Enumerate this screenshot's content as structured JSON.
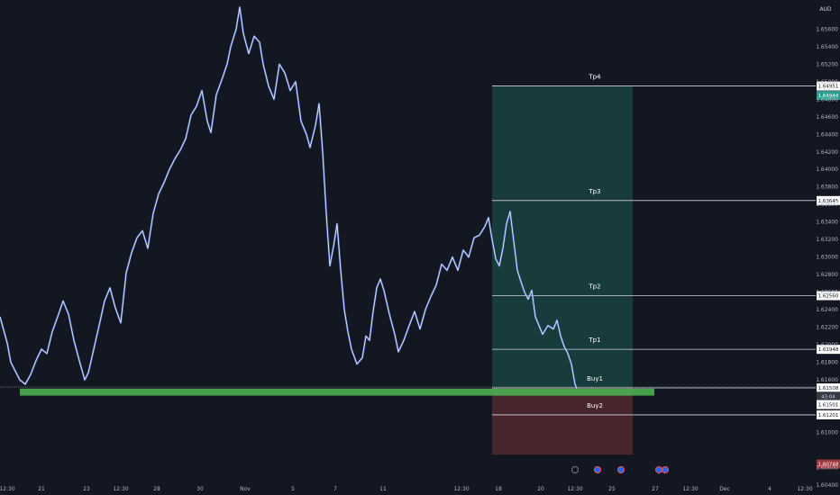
{
  "chart_data": {
    "type": "line",
    "currency": "AUD",
    "y_min": 1.6041,
    "y_max": 1.6585,
    "y_ticks": [
      1.656,
      1.654,
      1.652,
      1.65,
      1.648,
      1.646,
      1.644,
      1.642,
      1.64,
      1.638,
      1.636,
      1.634,
      1.632,
      1.63,
      1.628,
      1.626,
      1.624,
      1.622,
      1.62,
      1.618,
      1.616,
      1.61,
      1.606,
      1.604
    ],
    "y_tick_labels": [
      "1.65600",
      "1.65400",
      "1.65200",
      "1.65000",
      "1.64800",
      "1.64600",
      "1.64400",
      "1.64200",
      "1.64000",
      "1.63800",
      "1.63600",
      "1.63400",
      "1.63200",
      "1.63000",
      "1.62800",
      "1.62600",
      "1.62400",
      "1.62200",
      "1.62000",
      "1.61800",
      "1.61600",
      "1.61000",
      "1.60600",
      "1.60400"
    ],
    "x_labels": [
      "12:30",
      "21",
      "23",
      "12:30",
      "28",
      "30",
      "Nov",
      "5",
      "7",
      "11",
      "12:30",
      "18",
      "20",
      "12:30",
      "25",
      "27",
      "12:30",
      "Dec",
      "4",
      "12:30"
    ],
    "price_series": [
      [
        0,
        1.6232
      ],
      [
        8,
        1.6202
      ],
      [
        12,
        1.618
      ],
      [
        16,
        1.6172
      ],
      [
        22,
        1.616
      ],
      [
        28,
        1.6155
      ],
      [
        34,
        1.6166
      ],
      [
        40,
        1.6182
      ],
      [
        46,
        1.6195
      ],
      [
        52,
        1.619
      ],
      [
        58,
        1.6215
      ],
      [
        64,
        1.6232
      ],
      [
        70,
        1.625
      ],
      [
        76,
        1.6235
      ],
      [
        82,
        1.6205
      ],
      [
        88,
        1.6182
      ],
      [
        94,
        1.616
      ],
      [
        98,
        1.6168
      ],
      [
        104,
        1.6195
      ],
      [
        110,
        1.6222
      ],
      [
        116,
        1.625
      ],
      [
        122,
        1.6265
      ],
      [
        128,
        1.6242
      ],
      [
        134,
        1.6225
      ],
      [
        140,
        1.6282
      ],
      [
        146,
        1.6305
      ],
      [
        152,
        1.6322
      ],
      [
        158,
        1.633
      ],
      [
        164,
        1.631
      ],
      [
        170,
        1.635
      ],
      [
        176,
        1.6372
      ],
      [
        182,
        1.6385
      ],
      [
        188,
        1.64
      ],
      [
        194,
        1.6412
      ],
      [
        200,
        1.6422
      ],
      [
        206,
        1.6435
      ],
      [
        212,
        1.6462
      ],
      [
        218,
        1.6472
      ],
      [
        224,
        1.649
      ],
      [
        230,
        1.6455
      ],
      [
        234,
        1.6442
      ],
      [
        240,
        1.6485
      ],
      [
        246,
        1.6502
      ],
      [
        252,
        1.652
      ],
      [
        256,
        1.654
      ],
      [
        262,
        1.656
      ],
      [
        266,
        1.6585
      ],
      [
        270,
        1.6555
      ],
      [
        276,
        1.6532
      ],
      [
        282,
        1.6552
      ],
      [
        288,
        1.6545
      ],
      [
        292,
        1.652
      ],
      [
        298,
        1.6495
      ],
      [
        304,
        1.648
      ],
      [
        310,
        1.652
      ],
      [
        316,
        1.651
      ],
      [
        322,
        1.649
      ],
      [
        328,
        1.65
      ],
      [
        334,
        1.6455
      ],
      [
        340,
        1.644
      ],
      [
        344,
        1.6425
      ],
      [
        350,
        1.645
      ],
      [
        354,
        1.6475
      ],
      [
        358,
        1.642
      ],
      [
        362,
        1.635
      ],
      [
        366,
        1.629
      ],
      [
        370,
        1.6312
      ],
      [
        374,
        1.6338
      ],
      [
        378,
        1.6285
      ],
      [
        382,
        1.624
      ],
      [
        386,
        1.6215
      ],
      [
        390,
        1.6195
      ],
      [
        396,
        1.6178
      ],
      [
        402,
        1.6185
      ],
      [
        406,
        1.621
      ],
      [
        410,
        1.6205
      ],
      [
        414,
        1.6238
      ],
      [
        418,
        1.6265
      ],
      [
        422,
        1.6275
      ],
      [
        426,
        1.6262
      ],
      [
        432,
        1.6235
      ],
      [
        438,
        1.6212
      ],
      [
        442,
        1.6192
      ],
      [
        448,
        1.6205
      ],
      [
        454,
        1.6222
      ],
      [
        460,
        1.6238
      ],
      [
        466,
        1.6218
      ],
      [
        472,
        1.624
      ],
      [
        478,
        1.6255
      ],
      [
        484,
        1.6268
      ],
      [
        490,
        1.6292
      ],
      [
        496,
        1.6285
      ],
      [
        502,
        1.63
      ],
      [
        508,
        1.6285
      ],
      [
        514,
        1.6308
      ],
      [
        520,
        1.63
      ],
      [
        526,
        1.6322
      ],
      [
        532,
        1.6325
      ],
      [
        538,
        1.6335
      ],
      [
        542,
        1.6345
      ],
      [
        546,
        1.632
      ],
      [
        550,
        1.6298
      ],
      [
        554,
        1.629
      ],
      [
        558,
        1.631
      ],
      [
        562,
        1.6338
      ],
      [
        566,
        1.6352
      ],
      [
        570,
        1.6318
      ],
      [
        574,
        1.6285
      ],
      [
        578,
        1.6272
      ],
      [
        582,
        1.626
      ],
      [
        586,
        1.6252
      ],
      [
        590,
        1.6262
      ],
      [
        594,
        1.6232
      ],
      [
        598,
        1.6222
      ],
      [
        602,
        1.6212
      ],
      [
        608,
        1.6222
      ],
      [
        614,
        1.6218
      ],
      [
        618,
        1.6228
      ],
      [
        622,
        1.621
      ],
      [
        626,
        1.6198
      ],
      [
        630,
        1.619
      ],
      [
        634,
        1.6178
      ],
      [
        638,
        1.6155
      ],
      [
        640,
        1.615
      ]
    ],
    "levels": [
      {
        "name": "Tp4",
        "price": 1.64951,
        "label": "1.64951",
        "tag_bg": "#ffffff",
        "tag_fg": "#131722"
      },
      {
        "name": "Tp3",
        "price": 1.63645,
        "label": "1.63645",
        "tag_bg": "#ffffff",
        "tag_fg": "#131722"
      },
      {
        "name": "Tp2",
        "price": 1.6256,
        "label": "1.62560",
        "tag_bg": "#ffffff",
        "tag_fg": "#131722"
      },
      {
        "name": "Tp1",
        "price": 1.61948,
        "label": "1.61948",
        "tag_bg": "#ffffff",
        "tag_fg": "#131722"
      },
      {
        "name": "Buy1",
        "price": 1.61508,
        "label": "1.61508",
        "tag_bg": "#ffffff",
        "tag_fg": "#131722"
      },
      {
        "name": "Buy2",
        "price": 1.61201,
        "label": "1.61201",
        "tag_bg": "#ffffff",
        "tag_fg": "#131722"
      }
    ],
    "extra_tags": [
      {
        "label": "1.64944",
        "price": 1.64844,
        "bg": "#2a9d8f",
        "fg": "#ffffff"
      },
      {
        "label": "43:04",
        "price": 1.61413,
        "bg": "#363a45",
        "fg": "#d1d4dc"
      },
      {
        "label": "1.61501",
        "price": 1.61318,
        "bg": "#ffffff",
        "fg": "#131722"
      },
      {
        "label": "1.60748",
        "price": 1.6064,
        "bg": "#9b3b3b",
        "fg": "#ffffff"
      }
    ],
    "profit_zone": {
      "top": 1.64951,
      "bottom": 1.61508,
      "color": "#1e5a52"
    },
    "loss_zone": {
      "top": 1.61508,
      "bottom": 1.60748,
      "color": "#5b2a30"
    },
    "support_zone": {
      "top": 1.615,
      "bottom": 1.6142,
      "color": "#4caf50"
    },
    "colors": {
      "background": "#131722",
      "price_line": "#4d6fd6",
      "level_line": "#d1d4dc",
      "axis_text": "#b2b5be"
    },
    "event_icons": [
      "lightning-icon",
      "calendar-icon",
      "calendar-icon",
      "flag-icon",
      "flag-icon"
    ]
  }
}
